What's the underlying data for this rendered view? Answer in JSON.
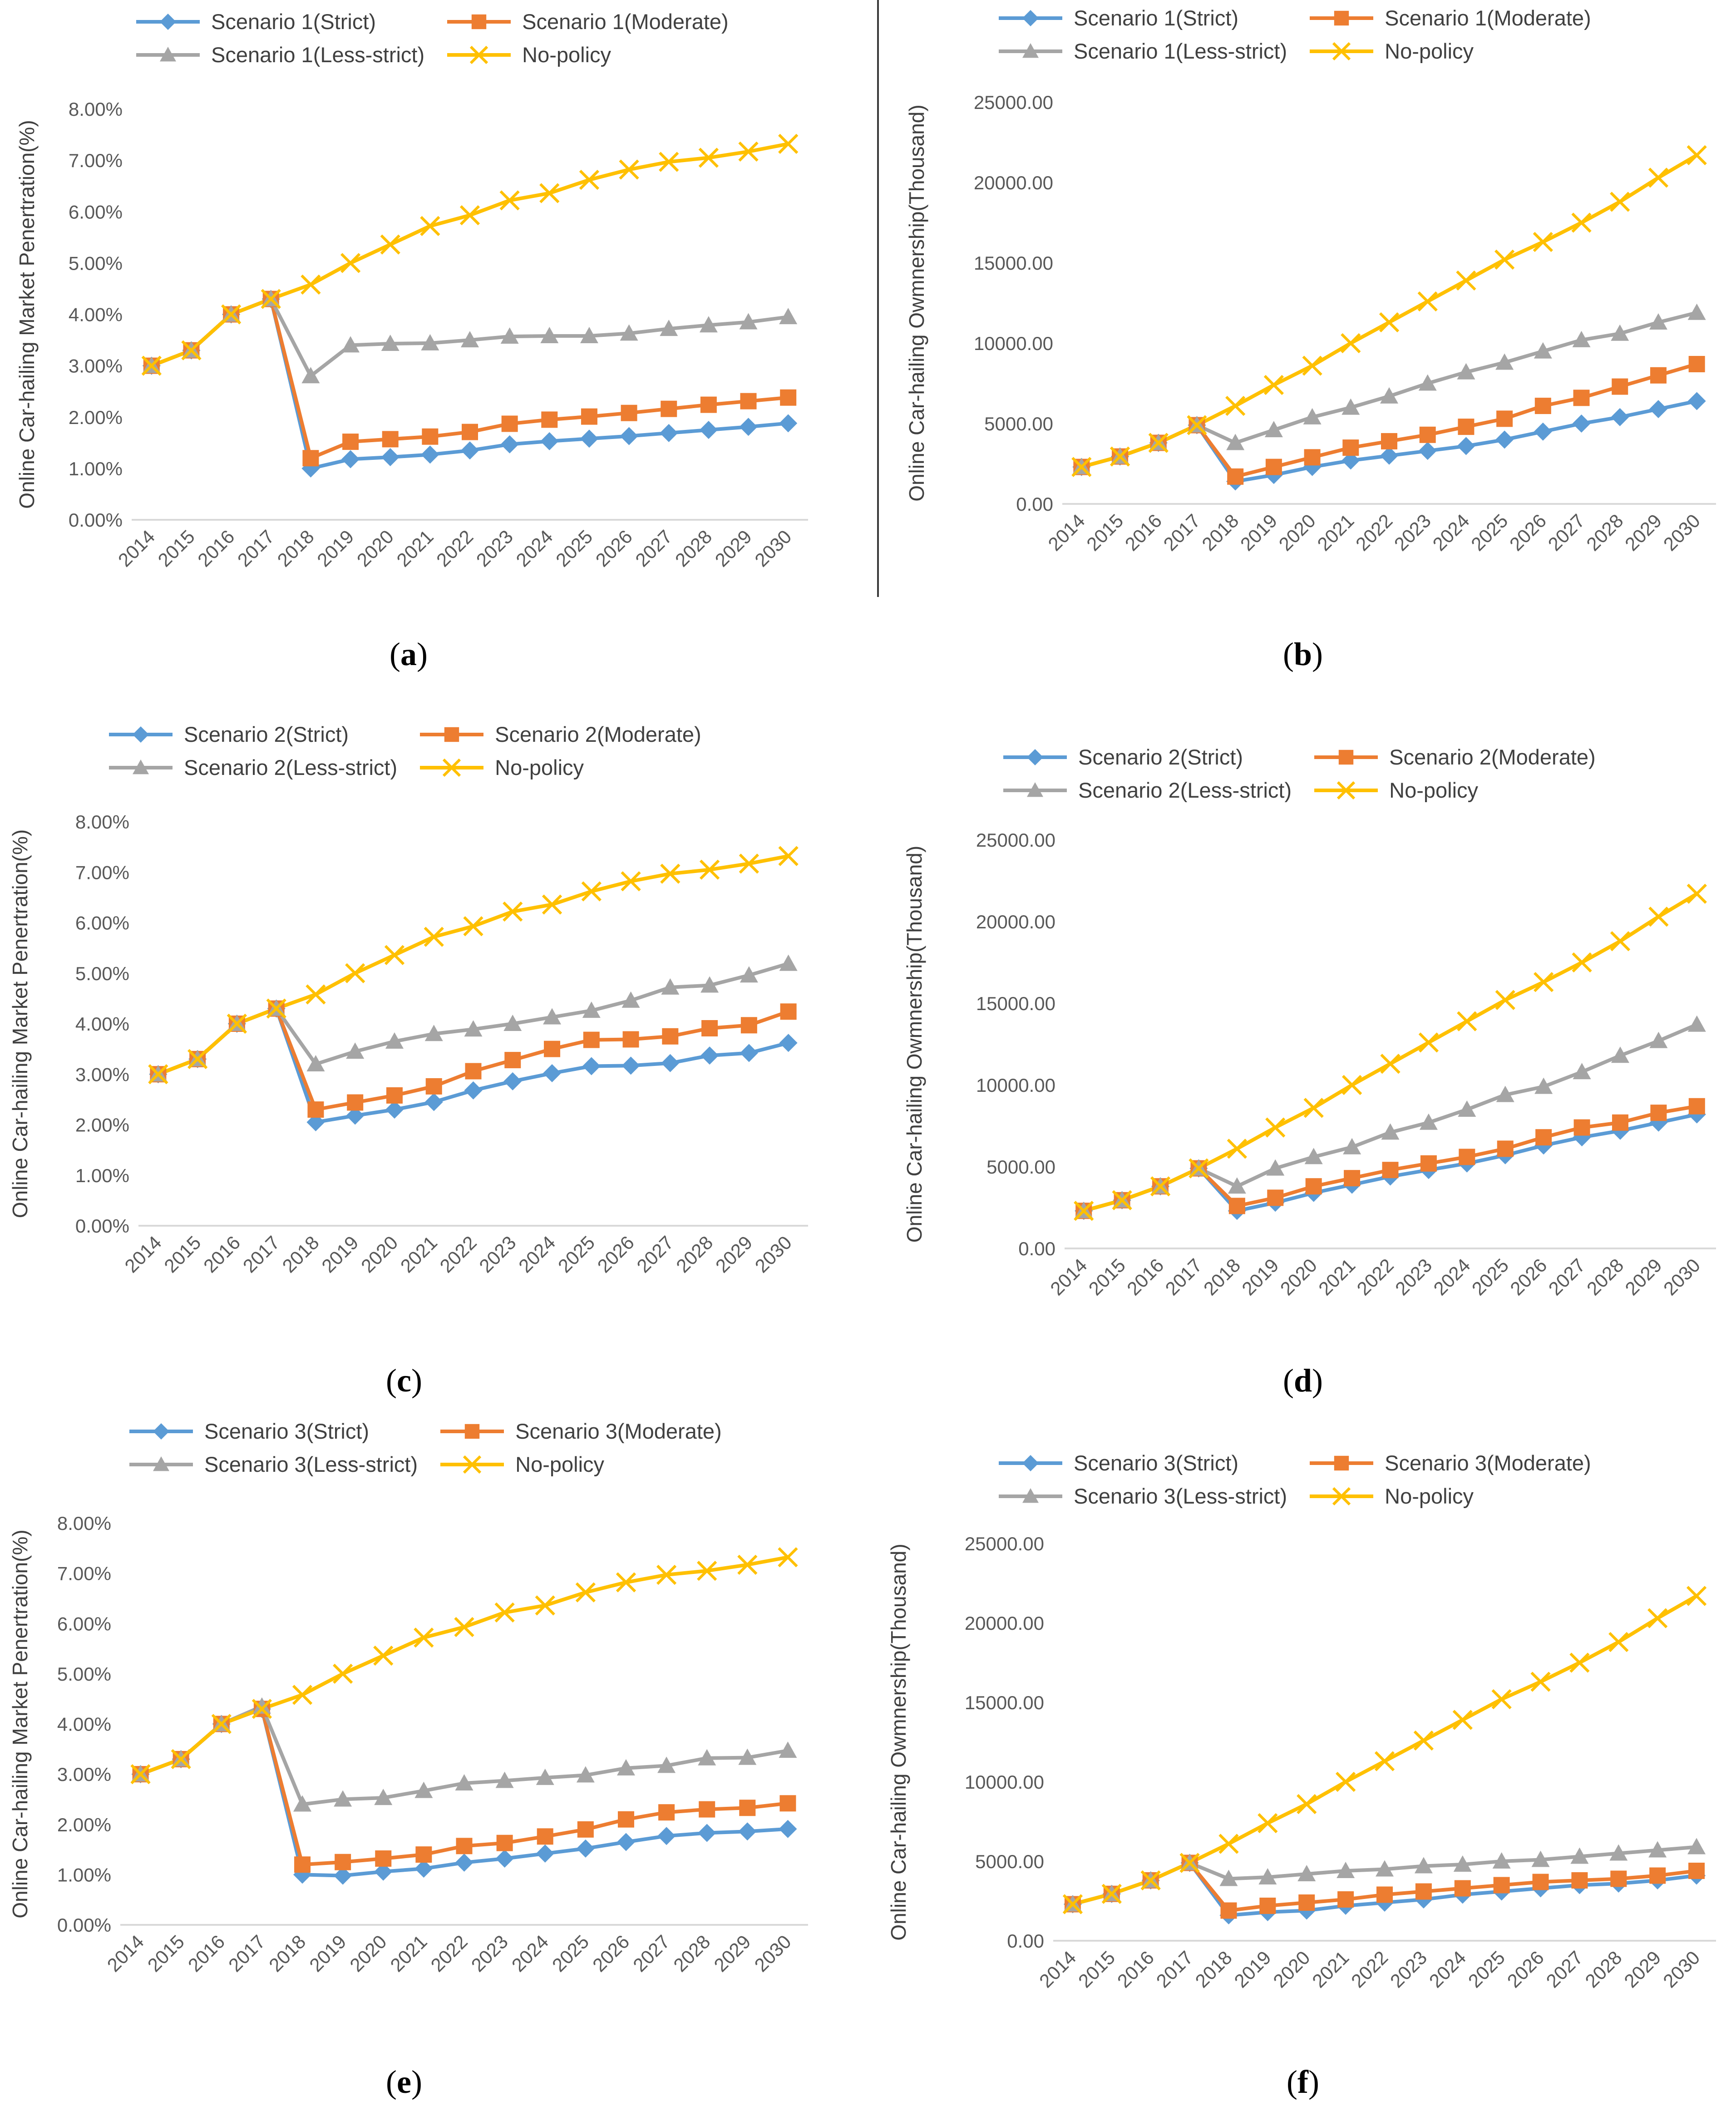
{
  "colors": {
    "strict": "#5B9BD5",
    "moderate": "#ED7D31",
    "less_strict": "#A5A5A5",
    "no_policy": "#FFC000",
    "axis": "#D9D9D9",
    "text": "#595959"
  },
  "chart_data": [
    {
      "id": "a",
      "type": "line",
      "caption": "a",
      "xlabel": "",
      "ylabel": "Online Car-hailing Market Penertration(%)",
      "categories": [
        "2014",
        "2015",
        "2016",
        "2017",
        "2018",
        "2019",
        "2020",
        "2021",
        "2022",
        "2023",
        "2024",
        "2025",
        "2026",
        "2027",
        "2028",
        "2029",
        "2030"
      ],
      "ylim": [
        0,
        8
      ],
      "yticks": [
        "0.00%",
        "1.00%",
        "2.00%",
        "3.00%",
        "4.00%",
        "5.00%",
        "6.00%",
        "7.00%",
        "8.00%"
      ],
      "series": [
        {
          "name": "Scenario 1(Strict)",
          "key": "strict",
          "values": [
            3.0,
            3.3,
            4.0,
            4.3,
            1.0,
            1.18,
            1.22,
            1.27,
            1.35,
            1.47,
            1.53,
            1.58,
            1.63,
            1.69,
            1.75,
            1.81,
            1.88
          ]
        },
        {
          "name": "Scenario 1(Moderate)",
          "key": "moderate",
          "values": [
            3.0,
            3.3,
            4.0,
            4.3,
            1.2,
            1.52,
            1.57,
            1.62,
            1.71,
            1.87,
            1.95,
            2.01,
            2.08,
            2.16,
            2.24,
            2.31,
            2.38
          ]
        },
        {
          "name": "Scenario 1(Less-strict)",
          "key": "less_strict",
          "values": [
            3.0,
            3.3,
            4.0,
            4.3,
            2.8,
            3.4,
            3.43,
            3.44,
            3.5,
            3.57,
            3.58,
            3.58,
            3.63,
            3.72,
            3.79,
            3.85,
            3.95
          ]
        },
        {
          "name": "No-policy",
          "key": "no_policy",
          "values": [
            3.0,
            3.3,
            4.0,
            4.3,
            4.58,
            5.0,
            5.36,
            5.72,
            5.93,
            6.22,
            6.36,
            6.62,
            6.82,
            6.97,
            7.05,
            7.17,
            7.32
          ]
        }
      ]
    },
    {
      "id": "b",
      "type": "line",
      "caption": "b",
      "xlabel": "",
      "ylabel": "Online Car-hailing Owmnership(Thousand)",
      "categories": [
        "2014",
        "2015",
        "2016",
        "2017",
        "2018",
        "2019",
        "2020",
        "2021",
        "2022",
        "2023",
        "2024",
        "2025",
        "2026",
        "2027",
        "2028",
        "2029",
        "2030"
      ],
      "ylim": [
        0,
        25000
      ],
      "yticks": [
        "0.00",
        "5000.00",
        "10000.00",
        "15000.00",
        "20000.00",
        "25000.00"
      ],
      "series": [
        {
          "name": "Scenario 1(Strict)",
          "key": "strict",
          "values": [
            2300,
            2950,
            3800,
            4900,
            1400,
            1800,
            2300,
            2700,
            3000,
            3300,
            3600,
            4000,
            4500,
            5000,
            5400,
            5900,
            6400
          ]
        },
        {
          "name": "Scenario 1(Moderate)",
          "key": "moderate",
          "values": [
            2300,
            2950,
            3800,
            4900,
            1700,
            2300,
            2900,
            3500,
            3900,
            4300,
            4800,
            5300,
            6100,
            6600,
            7300,
            8000,
            8700
          ]
        },
        {
          "name": "Scenario 1(Less-strict)",
          "key": "less_strict",
          "values": [
            2300,
            2950,
            3800,
            4900,
            3800,
            4600,
            5400,
            6000,
            6700,
            7500,
            8200,
            8800,
            9500,
            10200,
            10600,
            11300,
            11900
          ]
        },
        {
          "name": "No-policy",
          "key": "no_policy",
          "values": [
            2300,
            2950,
            3800,
            4900,
            6100,
            7400,
            8600,
            10000,
            11300,
            12600,
            13900,
            15200,
            16300,
            17500,
            18800,
            20300,
            21700
          ]
        }
      ]
    },
    {
      "id": "c",
      "type": "line",
      "caption": "c",
      "xlabel": "",
      "ylabel": "Online Car-hailing Market Penertration(%)",
      "categories": [
        "2014",
        "2015",
        "2016",
        "2017",
        "2018",
        "2019",
        "2020",
        "2021",
        "2022",
        "2023",
        "2024",
        "2025",
        "2026",
        "2027",
        "2028",
        "2029",
        "2030"
      ],
      "ylim": [
        0,
        8
      ],
      "yticks": [
        "0.00%",
        "1.00%",
        "2.00%",
        "3.00%",
        "4.00%",
        "5.00%",
        "6.00%",
        "7.00%",
        "8.00%"
      ],
      "series": [
        {
          "name": "Scenario 2(Strict)",
          "key": "strict",
          "values": [
            3.0,
            3.3,
            4.0,
            4.3,
            2.05,
            2.18,
            2.3,
            2.45,
            2.68,
            2.86,
            3.02,
            3.16,
            3.17,
            3.22,
            3.37,
            3.42,
            3.62
          ]
        },
        {
          "name": "Scenario 2(Moderate)",
          "key": "moderate",
          "values": [
            3.0,
            3.3,
            4.0,
            4.3,
            2.3,
            2.44,
            2.58,
            2.76,
            3.06,
            3.28,
            3.5,
            3.68,
            3.69,
            3.75,
            3.91,
            3.97,
            4.24
          ]
        },
        {
          "name": "Scenario 2(Less-strict)",
          "key": "less_strict",
          "values": [
            3.0,
            3.3,
            4.0,
            4.3,
            3.2,
            3.45,
            3.65,
            3.8,
            3.89,
            4.0,
            4.13,
            4.26,
            4.46,
            4.72,
            4.76,
            4.96,
            5.19
          ]
        },
        {
          "name": "No-policy",
          "key": "no_policy",
          "values": [
            3.0,
            3.3,
            4.0,
            4.3,
            4.58,
            5.0,
            5.36,
            5.72,
            5.93,
            6.22,
            6.36,
            6.62,
            6.82,
            6.97,
            7.05,
            7.17,
            7.32
          ]
        }
      ]
    },
    {
      "id": "d",
      "type": "line",
      "caption": "d",
      "xlabel": "",
      "ylabel": "Online Car-hailing Owmnership(Thousand)",
      "categories": [
        "2014",
        "2015",
        "2016",
        "2017",
        "2018",
        "2019",
        "2020",
        "2021",
        "2022",
        "2023",
        "2024",
        "2025",
        "2026",
        "2027",
        "2028",
        "2029",
        "2030"
      ],
      "ylim": [
        0,
        25000
      ],
      "yticks": [
        "0.00",
        "5000.00",
        "10000.00",
        "15000.00",
        "20000.00",
        "25000.00"
      ],
      "series": [
        {
          "name": "Scenario 2(Strict)",
          "key": "strict",
          "values": [
            2300,
            2950,
            3800,
            4900,
            2300,
            2800,
            3400,
            3900,
            4400,
            4800,
            5200,
            5700,
            6300,
            6800,
            7200,
            7700,
            8200
          ]
        },
        {
          "name": "Scenario 2(Moderate)",
          "key": "moderate",
          "values": [
            2300,
            2950,
            3800,
            4900,
            2600,
            3100,
            3800,
            4300,
            4800,
            5200,
            5600,
            6100,
            6800,
            7400,
            7700,
            8300,
            8700
          ]
        },
        {
          "name": "Scenario 2(Less-strict)",
          "key": "less_strict",
          "values": [
            2300,
            2950,
            3800,
            4900,
            3800,
            4900,
            5600,
            6200,
            7100,
            7700,
            8500,
            9400,
            9900,
            10800,
            11800,
            12700,
            13700
          ]
        },
        {
          "name": "No-policy",
          "key": "no_policy",
          "values": [
            2300,
            2950,
            3800,
            4900,
            6100,
            7400,
            8600,
            10000,
            11300,
            12600,
            13900,
            15200,
            16300,
            17500,
            18800,
            20300,
            21700
          ]
        }
      ]
    },
    {
      "id": "e",
      "type": "line",
      "caption": "e",
      "xlabel": "",
      "ylabel": "Online Car-hailing Market Penertration(%)",
      "categories": [
        "2014",
        "2015",
        "2016",
        "2017",
        "2018",
        "2019",
        "2020",
        "2021",
        "2022",
        "2023",
        "2024",
        "2025",
        "2026",
        "2027",
        "2028",
        "2029",
        "2030"
      ],
      "ylim": [
        0,
        8
      ],
      "yticks": [
        "0.00%",
        "1.00%",
        "2.00%",
        "3.00%",
        "4.00%",
        "5.00%",
        "6.00%",
        "7.00%",
        "8.00%"
      ],
      "series": [
        {
          "name": "Scenario 3(Strict)",
          "key": "strict",
          "values": [
            3.0,
            3.3,
            4.0,
            4.3,
            1.0,
            0.98,
            1.06,
            1.12,
            1.24,
            1.32,
            1.42,
            1.52,
            1.65,
            1.77,
            1.83,
            1.86,
            1.91
          ]
        },
        {
          "name": "Scenario 3(Moderate)",
          "key": "moderate",
          "values": [
            3.0,
            3.3,
            4.0,
            4.3,
            1.2,
            1.25,
            1.32,
            1.4,
            1.57,
            1.63,
            1.76,
            1.9,
            2.1,
            2.24,
            2.3,
            2.33,
            2.42
          ]
        },
        {
          "name": "Scenario 3(Less-strict)",
          "key": "less_strict",
          "values": [
            3.0,
            3.3,
            4.0,
            4.35,
            2.4,
            2.5,
            2.53,
            2.67,
            2.82,
            2.87,
            2.93,
            2.98,
            3.12,
            3.17,
            3.32,
            3.33,
            3.47
          ]
        },
        {
          "name": "No-policy",
          "key": "no_policy",
          "values": [
            3.0,
            3.3,
            4.0,
            4.3,
            4.58,
            5.0,
            5.36,
            5.72,
            5.93,
            6.22,
            6.36,
            6.62,
            6.82,
            6.97,
            7.05,
            7.17,
            7.32
          ]
        }
      ]
    },
    {
      "id": "f",
      "type": "line",
      "caption": "f",
      "xlabel": "",
      "ylabel": "Online Car-hailing Owmnership(Thousand)",
      "categories": [
        "2014",
        "2015",
        "2016",
        "2017",
        "2018",
        "2019",
        "2020",
        "2021",
        "2022",
        "2023",
        "2024",
        "2025",
        "2026",
        "2027",
        "2028",
        "2029",
        "2030"
      ],
      "ylim": [
        0,
        25000
      ],
      "yticks": [
        "0.00",
        "5000.00",
        "10000.00",
        "15000.00",
        "20000.00",
        "25000.00"
      ],
      "series": [
        {
          "name": "Scenario 3(Strict)",
          "key": "strict",
          "values": [
            2300,
            2950,
            3800,
            4900,
            1600,
            1800,
            1900,
            2200,
            2400,
            2600,
            2900,
            3100,
            3300,
            3500,
            3600,
            3800,
            4100
          ]
        },
        {
          "name": "Scenario 3(Moderate)",
          "key": "moderate",
          "values": [
            2300,
            2950,
            3800,
            4900,
            1900,
            2200,
            2400,
            2600,
            2900,
            3100,
            3300,
            3500,
            3700,
            3800,
            3900,
            4100,
            4400
          ]
        },
        {
          "name": "Scenario 3(Less-strict)",
          "key": "less_strict",
          "values": [
            2300,
            2950,
            3800,
            4900,
            3900,
            4000,
            4200,
            4400,
            4500,
            4700,
            4800,
            5000,
            5100,
            5300,
            5500,
            5700,
            5900
          ]
        },
        {
          "name": "No-policy",
          "key": "no_policy",
          "values": [
            2300,
            2950,
            3800,
            4900,
            6100,
            7400,
            8600,
            10000,
            11300,
            12600,
            13900,
            15200,
            16300,
            17500,
            18800,
            20300,
            21700
          ]
        }
      ]
    }
  ]
}
